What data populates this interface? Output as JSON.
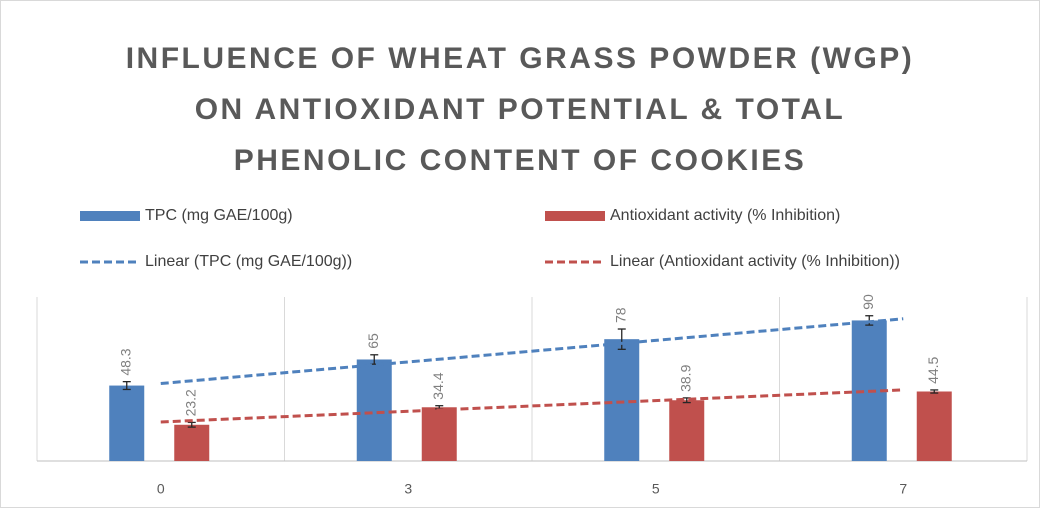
{
  "chart_data": {
    "type": "bar",
    "title": "INFLUENCE OF WHEAT GRASS POWDER (WGP) ON ANTIOXIDANT POTENTIAL & TOTAL PHENOLIC CONTENT OF COOKIES",
    "categories": [
      "0",
      "3",
      "5",
      "7"
    ],
    "series": [
      {
        "name": "TPC (mg GAE/100g)",
        "color": "#4f81bd",
        "values": [
          48.3,
          65,
          78,
          90
        ],
        "errors": [
          2.5,
          3,
          6.5,
          3
        ],
        "trendline": {
          "name": "Linear (TPC (mg GAE/100g))",
          "color": "#4f81bd"
        }
      },
      {
        "name": "Antioxidant activity (% Inhibition)",
        "color": "#c0504d",
        "values": [
          23.2,
          34.4,
          38.9,
          44.5
        ],
        "errors": [
          1.5,
          1,
          1.5,
          1
        ],
        "trendline": {
          "name": "Linear (Antioxidant activity (% Inhibition))",
          "color": "#c0504d"
        }
      }
    ],
    "ylim": [
      0,
      105
    ],
    "grid": true
  }
}
